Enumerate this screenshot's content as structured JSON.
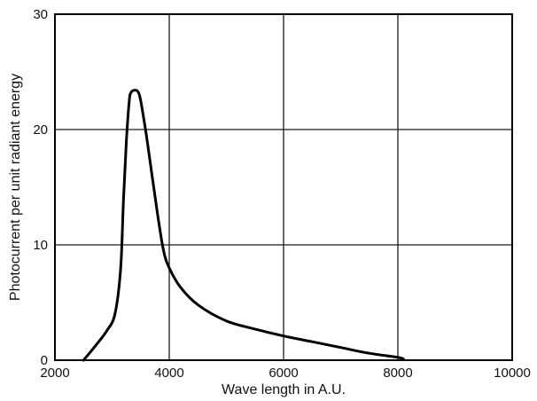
{
  "chart_data": {
    "type": "line",
    "title": "",
    "xlabel": "Wave length in A.U.",
    "ylabel": "Photocurrent per unit radiant energy",
    "xlim": [
      2000,
      10000
    ],
    "ylim": [
      0,
      30
    ],
    "xticks": [
      2000,
      4000,
      6000,
      8000,
      10000
    ],
    "yticks": [
      0,
      10,
      20,
      30
    ],
    "grid": true,
    "series": [
      {
        "x": [
          2500,
          2700,
          2900,
          3050,
          3150,
          3200,
          3250,
          3300,
          3330,
          3380,
          3450,
          3500,
          3600,
          3700,
          3800,
          3900,
          4000,
          4200,
          4500,
          5000,
          5500,
          6000,
          6500,
          7000,
          7500,
          8000,
          8100
        ],
        "y": [
          0,
          1.2,
          2.5,
          4.0,
          8.0,
          14.0,
          19.0,
          22.5,
          23.2,
          23.4,
          23.3,
          22.5,
          19.5,
          16.0,
          12.5,
          9.5,
          8.0,
          6.3,
          4.8,
          3.4,
          2.7,
          2.1,
          1.6,
          1.1,
          0.6,
          0.25,
          0.1
        ]
      }
    ]
  }
}
